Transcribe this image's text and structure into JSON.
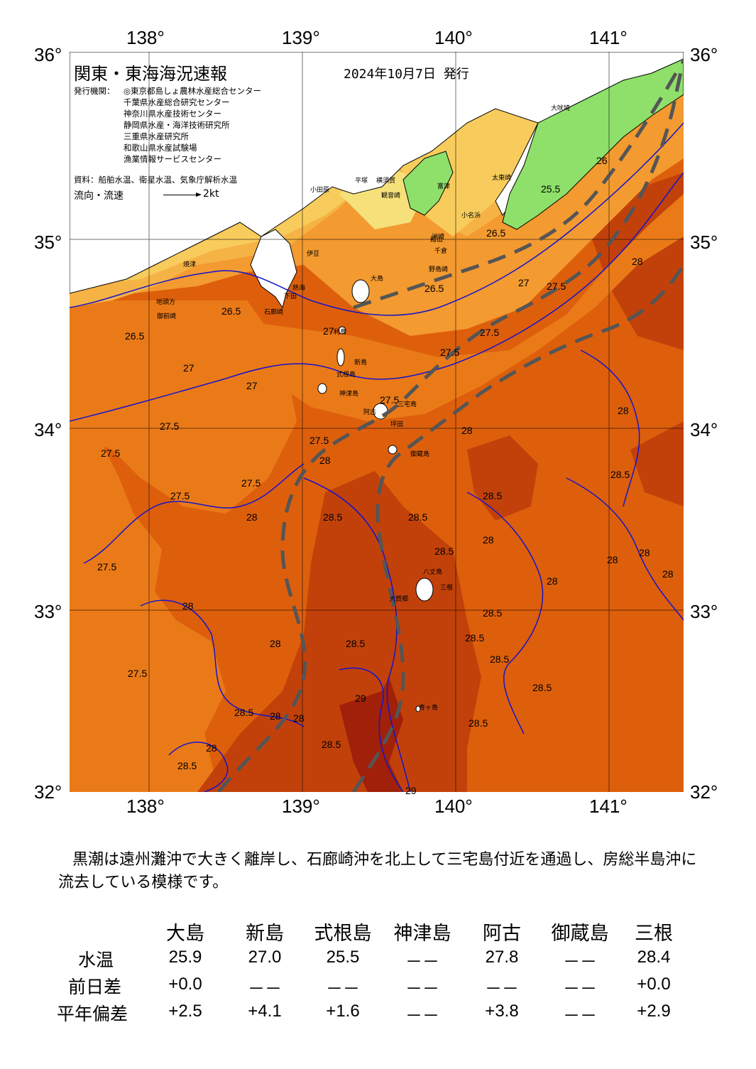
{
  "map": {
    "title": "関東・東海海況速報",
    "date": "2024年10月7日 発行",
    "agency_label": "発行機関：",
    "agencies": [
      "◎東京都島しょ農林水産総合センター",
      "千葉県水産総合研究センター",
      "神奈川県水産技術センター",
      "静岡県水産・海洋技術研究所",
      "三重県水産研究所",
      "和歌山県水産試験場",
      "漁業情報サービスセンター"
    ],
    "source": "資料：船舶水温、衛星水温、気象庁解析水温",
    "flow_label": "流向・流速",
    "flow_scale": "2kt",
    "lon_labels": [
      "138°",
      "139°",
      "140°",
      "141°"
    ],
    "lat_labels": [
      "36°",
      "35°",
      "34°",
      "33°",
      "32°"
    ],
    "place_names": [
      "大吠埼",
      "太東崎",
      "小名浜",
      "野島崎",
      "千倉",
      "洲崎",
      "館山",
      "富津",
      "観音崎",
      "横須賀",
      "平塚",
      "小田原",
      "伊豆",
      "熱海",
      "下田",
      "石廊崎",
      "御前崎",
      "焼津",
      "地頭方",
      "大島",
      "利島",
      "新島",
      "式根島",
      "神津島",
      "三宅島",
      "阿古",
      "坪田",
      "御蔵島",
      "八丈島",
      "三根",
      "大賀郷",
      "青ヶ島"
    ],
    "isotherm_labels": [
      "25.5",
      "26",
      "26.5",
      "27",
      "27.5",
      "28",
      "28.5",
      "29"
    ]
  },
  "description": "黒潮は遠州灘沖で大きく離岸し、石廊崎沖を北上して三宅島付近を通過し、房総半島沖に流去している模様です。",
  "table": {
    "columns": [
      "大島",
      "新島",
      "式根島",
      "神津島",
      "阿古",
      "御蔵島",
      "三根"
    ],
    "rows": [
      {
        "label": "水温",
        "values": [
          "25.9",
          "27.0",
          "25.5",
          "－－",
          "27.8",
          "－－",
          "28.4"
        ]
      },
      {
        "label": "前日差",
        "values": [
          "+0.0",
          "－－",
          "－－",
          "－－",
          "－－",
          "－－",
          "+0.0"
        ]
      },
      {
        "label": "平年偏差",
        "values": [
          "+2.5",
          "+4.1",
          "+1.6",
          "－－",
          "+3.8",
          "－－",
          "+2.9"
        ]
      }
    ]
  },
  "colors": {
    "t29": "#a0200a",
    "t28_5": "#c2410a",
    "t28": "#dd5f0c",
    "t27_5": "#ea7a18",
    "t27": "#f39a30",
    "t26_5": "#f6b345",
    "t26": "#f8cc5c",
    "t25_5": "#f5e07a",
    "land_green": "#8ee06a",
    "kuroshio": "#555555",
    "isotherm": "#1414cc"
  }
}
